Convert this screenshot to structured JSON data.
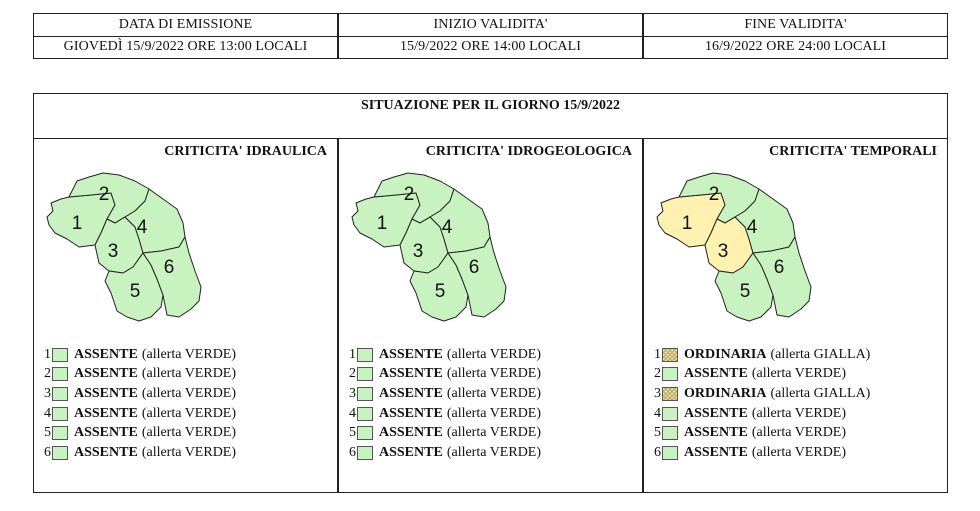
{
  "header": {
    "emissione_label": "DATA DI EMISSIONE",
    "emissione_value": "GIOVEDÌ 15/9/2022 ORE 13:00 LOCALI",
    "inizio_label": "INIZIO VALIDITA'",
    "inizio_value": "15/9/2022 ORE 14:00 LOCALI",
    "fine_label": "FINE VALIDITA'",
    "fine_value": "16/9/2022 ORE 24:00 LOCALI"
  },
  "situazione": "SITUAZIONE PER IL GIORNO 15/9/2022",
  "colors": {
    "green": "#c8f3c0",
    "yellow": "#fff2b0",
    "border": "#222222"
  },
  "panels": [
    {
      "title": "CRITICITA' IDRAULICA",
      "zones": [
        {
          "num": "1",
          "level": "ASSENTE",
          "alert": "(allerta VERDE)",
          "color": "green"
        },
        {
          "num": "2",
          "level": "ASSENTE",
          "alert": "(allerta VERDE)",
          "color": "green"
        },
        {
          "num": "3",
          "level": "ASSENTE",
          "alert": "(allerta VERDE)",
          "color": "green"
        },
        {
          "num": "4",
          "level": "ASSENTE",
          "alert": "(allerta VERDE)",
          "color": "green"
        },
        {
          "num": "5",
          "level": "ASSENTE",
          "alert": "(allerta VERDE)",
          "color": "green"
        },
        {
          "num": "6",
          "level": "ASSENTE",
          "alert": "(allerta VERDE)",
          "color": "green"
        }
      ]
    },
    {
      "title": "CRITICITA' IDROGEOLOGICA",
      "zones": [
        {
          "num": "1",
          "level": "ASSENTE",
          "alert": "(allerta VERDE)",
          "color": "green"
        },
        {
          "num": "2",
          "level": "ASSENTE",
          "alert": "(allerta VERDE)",
          "color": "green"
        },
        {
          "num": "3",
          "level": "ASSENTE",
          "alert": "(allerta VERDE)",
          "color": "green"
        },
        {
          "num": "4",
          "level": "ASSENTE",
          "alert": "(allerta VERDE)",
          "color": "green"
        },
        {
          "num": "5",
          "level": "ASSENTE",
          "alert": "(allerta VERDE)",
          "color": "green"
        },
        {
          "num": "6",
          "level": "ASSENTE",
          "alert": "(allerta VERDE)",
          "color": "green"
        }
      ]
    },
    {
      "title": "CRITICITA' TEMPORALI",
      "zones": [
        {
          "num": "1",
          "level": "ORDINARIA",
          "alert": "(allerta GIALLA)",
          "color": "yellow"
        },
        {
          "num": "2",
          "level": "ASSENTE",
          "alert": "(allerta VERDE)",
          "color": "green"
        },
        {
          "num": "3",
          "level": "ORDINARIA",
          "alert": "(allerta GIALLA)",
          "color": "yellow"
        },
        {
          "num": "4",
          "level": "ASSENTE",
          "alert": "(allerta VERDE)",
          "color": "green"
        },
        {
          "num": "5",
          "level": "ASSENTE",
          "alert": "(allerta VERDE)",
          "color": "green"
        },
        {
          "num": "6",
          "level": "ASSENTE",
          "alert": "(allerta VERDE)",
          "color": "green"
        }
      ]
    }
  ]
}
